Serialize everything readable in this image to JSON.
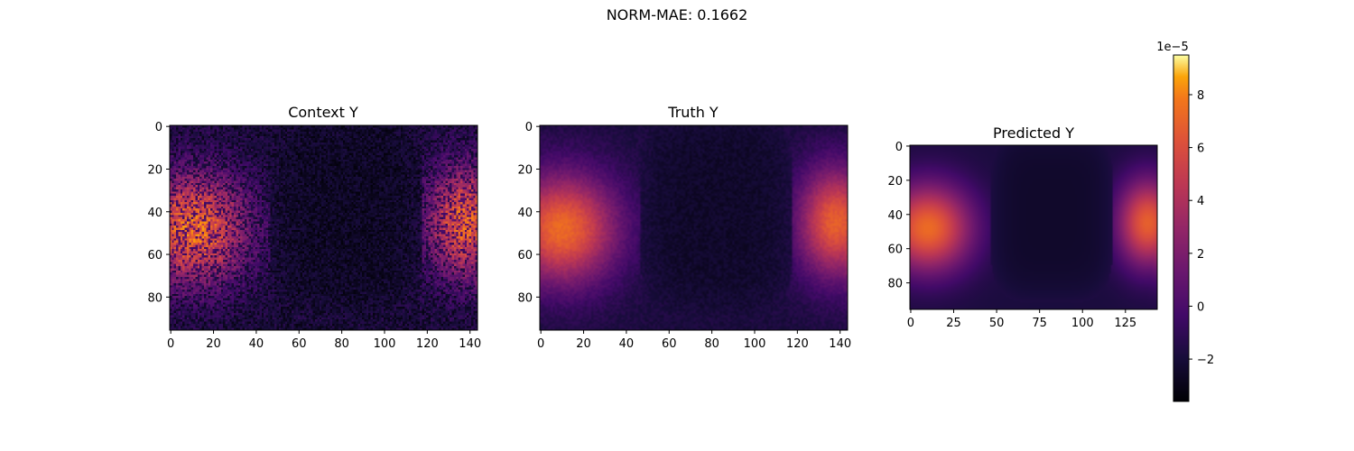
{
  "figure": {
    "suptitle": "NORM-MAE: 0.1662"
  },
  "chart_data": [
    {
      "type": "heatmap",
      "title": "Context Y",
      "xticks": [
        "0",
        "20",
        "40",
        "60",
        "80",
        "100",
        "120",
        "140"
      ],
      "yticks": [
        "0",
        "20",
        "40",
        "60",
        "80"
      ],
      "xlim": [
        0,
        143
      ],
      "ylim": [
        95,
        0
      ],
      "grid_shape": [
        96,
        144
      ],
      "pattern": "sparse noisy sampled field: bright regions at both longitudinal edges (x<40 and x>115), dark center band"
    },
    {
      "type": "heatmap",
      "title": "Truth Y",
      "xticks": [
        "0",
        "20",
        "40",
        "60",
        "80",
        "100",
        "120",
        "140"
      ],
      "yticks": [
        "0",
        "20",
        "40",
        "60",
        "80"
      ],
      "xlim": [
        0,
        143
      ],
      "ylim": [
        95,
        0
      ],
      "grid_shape": [
        96,
        144
      ],
      "pattern": "smooth field: bright lobes at both edges peaking near x≈10, y≈50; dark rounded basin in center"
    },
    {
      "type": "heatmap",
      "title": "Predicted Y",
      "xticks": [
        "0",
        "25",
        "50",
        "75",
        "100",
        "125"
      ],
      "yticks": [
        "0",
        "20",
        "40",
        "60",
        "80"
      ],
      "xlim": [
        0,
        143
      ],
      "ylim": [
        95,
        0
      ],
      "grid_shape": [
        96,
        144
      ],
      "pattern": "smoothed version of truth: bright edges, dark center"
    }
  ],
  "colorbar": {
    "colormap": "inferno",
    "scale_label": "1e−5",
    "ticks": [
      "8",
      "6",
      "4",
      "2",
      "0",
      "−2"
    ],
    "tick_values": [
      8,
      6,
      4,
      2,
      0,
      -2
    ],
    "range": [
      -3.6,
      9.5
    ]
  }
}
